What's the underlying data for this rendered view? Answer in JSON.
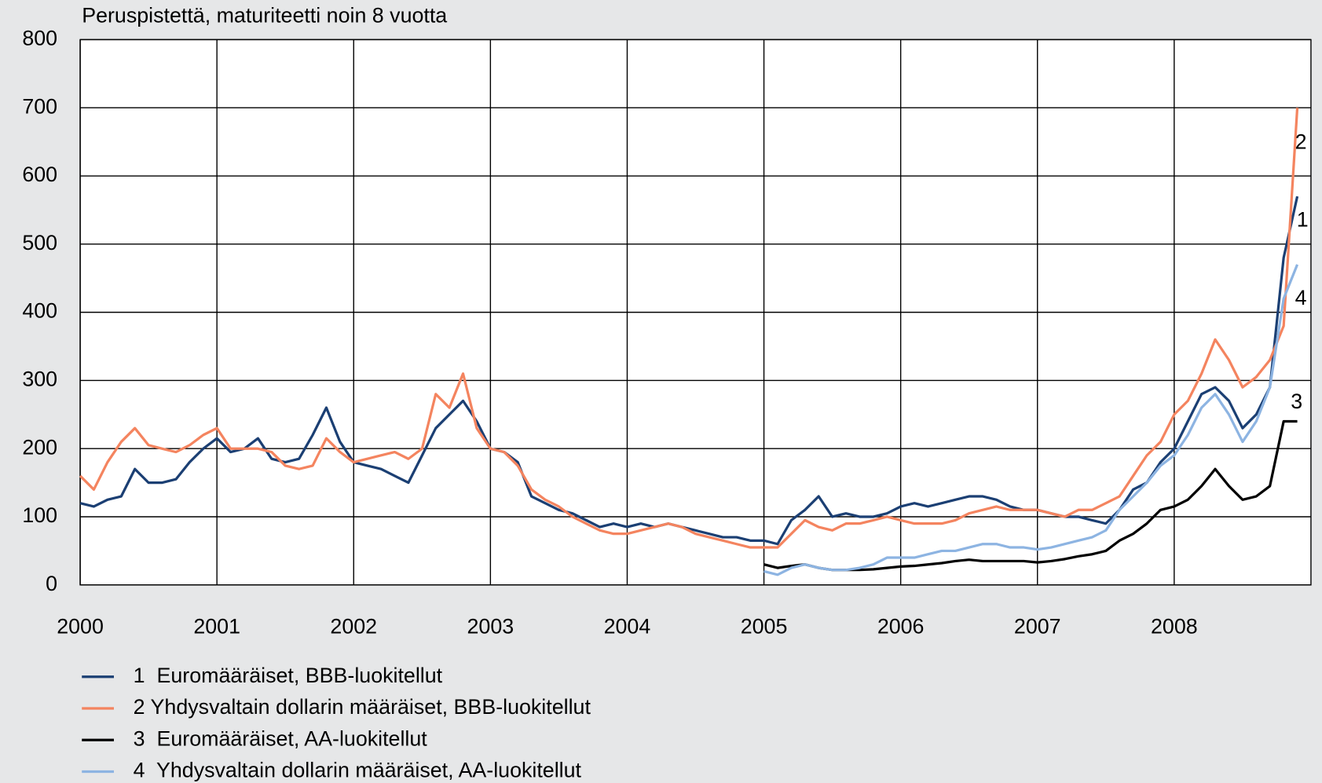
{
  "chart_data": {
    "type": "line",
    "subtitle": "Peruspistettä, maturiteetti noin 8 vuotta",
    "x": [
      2000.0,
      2000.1,
      2000.2,
      2000.3,
      2000.4,
      2000.5,
      2000.6,
      2000.7,
      2000.8,
      2000.9,
      2001.0,
      2001.1,
      2001.2,
      2001.3,
      2001.4,
      2001.5,
      2001.6,
      2001.7,
      2001.8,
      2001.9,
      2002.0,
      2002.1,
      2002.2,
      2002.3,
      2002.4,
      2002.5,
      2002.6,
      2002.7,
      2002.8,
      2002.9,
      2003.0,
      2003.1,
      2003.2,
      2003.3,
      2003.4,
      2003.5,
      2003.6,
      2003.7,
      2003.8,
      2003.9,
      2004.0,
      2004.1,
      2004.2,
      2004.3,
      2004.4,
      2004.5,
      2004.6,
      2004.7,
      2004.8,
      2004.9,
      2005.0,
      2005.1,
      2005.2,
      2005.3,
      2005.4,
      2005.5,
      2005.6,
      2005.7,
      2005.8,
      2005.9,
      2006.0,
      2006.1,
      2006.2,
      2006.3,
      2006.4,
      2006.5,
      2006.6,
      2006.7,
      2006.8,
      2006.9,
      2007.0,
      2007.1,
      2007.2,
      2007.3,
      2007.4,
      2007.5,
      2007.6,
      2007.7,
      2007.8,
      2007.9,
      2008.0,
      2008.1,
      2008.2,
      2008.3,
      2008.4,
      2008.5,
      2008.6,
      2008.7,
      2008.8,
      2008.9
    ],
    "series": [
      {
        "name": "1  Euromääräiset, BBB-luokitellut",
        "color": "#1b3f73",
        "values": [
          120,
          115,
          125,
          130,
          170,
          150,
          150,
          155,
          180,
          200,
          215,
          195,
          200,
          215,
          185,
          180,
          185,
          220,
          260,
          210,
          180,
          175,
          170,
          160,
          150,
          190,
          230,
          250,
          270,
          240,
          200,
          195,
          180,
          130,
          120,
          110,
          105,
          95,
          85,
          90,
          85,
          90,
          85,
          90,
          85,
          80,
          75,
          70,
          70,
          65,
          65,
          60,
          95,
          110,
          130,
          100,
          105,
          100,
          100,
          105,
          115,
          120,
          115,
          120,
          125,
          130,
          130,
          125,
          115,
          110,
          110,
          105,
          100,
          100,
          95,
          90,
          110,
          140,
          150,
          180,
          200,
          240,
          280,
          290,
          270,
          230,
          250,
          290,
          480,
          570
        ]
      },
      {
        "name": "2 Yhdysvaltain dollarin määräiset, BBB-luokitellut",
        "color": "#f4845f",
        "values": [
          160,
          140,
          180,
          210,
          230,
          205,
          200,
          195,
          205,
          220,
          230,
          200,
          200,
          200,
          195,
          175,
          170,
          175,
          215,
          195,
          180,
          185,
          190,
          195,
          185,
          200,
          280,
          260,
          310,
          230,
          200,
          195,
          175,
          140,
          125,
          115,
          100,
          90,
          80,
          75,
          75,
          80,
          85,
          90,
          85,
          75,
          70,
          65,
          60,
          55,
          55,
          55,
          75,
          95,
          85,
          80,
          90,
          90,
          95,
          100,
          95,
          90,
          90,
          90,
          95,
          105,
          110,
          115,
          110,
          110,
          110,
          105,
          100,
          110,
          110,
          120,
          130,
          160,
          190,
          210,
          250,
          270,
          310,
          360,
          330,
          290,
          305,
          330,
          380,
          700
        ]
      },
      {
        "name": "3  Euromääräiset, AA-luokitellut",
        "color": "#000000",
        "values": [
          null,
          null,
          null,
          null,
          null,
          null,
          null,
          null,
          null,
          null,
          null,
          null,
          null,
          null,
          null,
          null,
          null,
          null,
          null,
          null,
          null,
          null,
          null,
          null,
          null,
          null,
          null,
          null,
          null,
          null,
          null,
          null,
          null,
          null,
          null,
          null,
          null,
          null,
          null,
          null,
          null,
          null,
          null,
          null,
          null,
          null,
          null,
          null,
          null,
          null,
          30,
          25,
          28,
          30,
          25,
          22,
          22,
          22,
          23,
          25,
          27,
          28,
          30,
          32,
          35,
          37,
          35,
          35,
          35,
          35,
          33,
          35,
          38,
          42,
          45,
          50,
          65,
          75,
          90,
          110,
          115,
          125,
          145,
          170,
          145,
          125,
          130,
          145,
          240,
          240
        ]
      },
      {
        "name": "4  Yhdysvaltain dollarin määräiset, AA-luokitellut",
        "color": "#8db4e2",
        "values": [
          null,
          null,
          null,
          null,
          null,
          null,
          null,
          null,
          null,
          null,
          null,
          null,
          null,
          null,
          null,
          null,
          null,
          null,
          null,
          null,
          null,
          null,
          null,
          null,
          null,
          null,
          null,
          null,
          null,
          null,
          null,
          null,
          null,
          null,
          null,
          null,
          null,
          null,
          null,
          null,
          null,
          null,
          null,
          null,
          null,
          null,
          null,
          null,
          null,
          null,
          20,
          15,
          25,
          30,
          25,
          22,
          22,
          25,
          30,
          40,
          40,
          40,
          45,
          50,
          50,
          55,
          60,
          60,
          55,
          55,
          52,
          55,
          60,
          65,
          70,
          80,
          110,
          130,
          150,
          175,
          190,
          220,
          260,
          280,
          250,
          210,
          240,
          290,
          420,
          470
        ]
      }
    ],
    "annotations": [
      "2",
      "1",
      "4",
      "3"
    ],
    "xlim": [
      2000,
      2009
    ],
    "xticks": [
      2000,
      2001,
      2002,
      2003,
      2004,
      2005,
      2006,
      2007,
      2008
    ],
    "ylim": [
      0,
      800
    ],
    "yticks": [
      0,
      100,
      200,
      300,
      400,
      500,
      600,
      700,
      800
    ],
    "grid": true
  }
}
